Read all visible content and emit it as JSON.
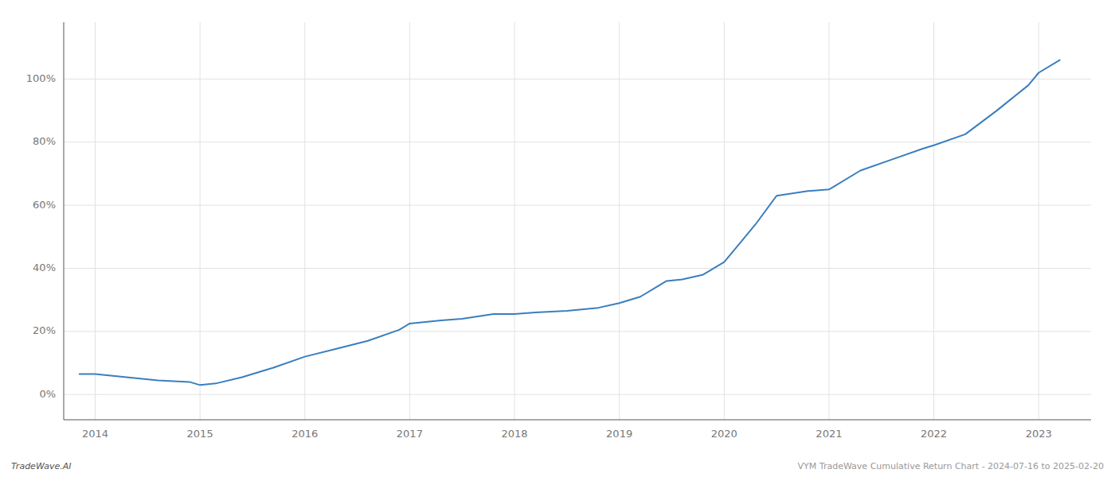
{
  "chart_data": {
    "type": "line",
    "x": [
      2013.85,
      2014.0,
      2014.3,
      2014.6,
      2014.9,
      2015.0,
      2015.15,
      2015.4,
      2015.7,
      2016.0,
      2016.3,
      2016.6,
      2016.9,
      2017.0,
      2017.3,
      2017.5,
      2017.8,
      2018.0,
      2018.2,
      2018.5,
      2018.8,
      2019.0,
      2019.2,
      2019.35,
      2019.45,
      2019.6,
      2019.8,
      2020.0,
      2020.15,
      2020.3,
      2020.5,
      2020.8,
      2021.0,
      2021.3,
      2021.6,
      2021.9,
      2022.0,
      2022.3,
      2022.6,
      2022.9,
      2023.0,
      2023.2
    ],
    "values": [
      6.5,
      6.5,
      5.5,
      4.5,
      4.0,
      3.0,
      3.5,
      5.5,
      8.5,
      12.0,
      14.5,
      17.0,
      20.5,
      22.5,
      23.5,
      24.0,
      25.5,
      25.5,
      26.0,
      26.5,
      27.5,
      29.0,
      31.0,
      34.0,
      36.0,
      36.5,
      38.0,
      42.0,
      48.0,
      54.0,
      63.0,
      64.5,
      65.0,
      71.0,
      74.5,
      78.0,
      79.0,
      82.5,
      90.0,
      98.0,
      102.0,
      106.0
    ],
    "color": "#3a7ebf",
    "xlim": [
      2013.7,
      2023.5
    ],
    "ylim": [
      -8,
      118
    ],
    "xticks": [
      2014,
      2015,
      2016,
      2017,
      2018,
      2019,
      2020,
      2021,
      2022,
      2023
    ],
    "yticks": [
      {
        "value": 0,
        "label": "0%"
      },
      {
        "value": 20,
        "label": "20%"
      },
      {
        "value": 40,
        "label": "40%"
      },
      {
        "value": 60,
        "label": "60%"
      },
      {
        "value": 80,
        "label": "80%"
      },
      {
        "value": 100,
        "label": "100%"
      }
    ],
    "grid": true,
    "annotations": [
      "TradeWave.AI",
      "VYM TradeWave Cumulative Return Chart - 2024-07-16 to 2025-02-20"
    ]
  }
}
